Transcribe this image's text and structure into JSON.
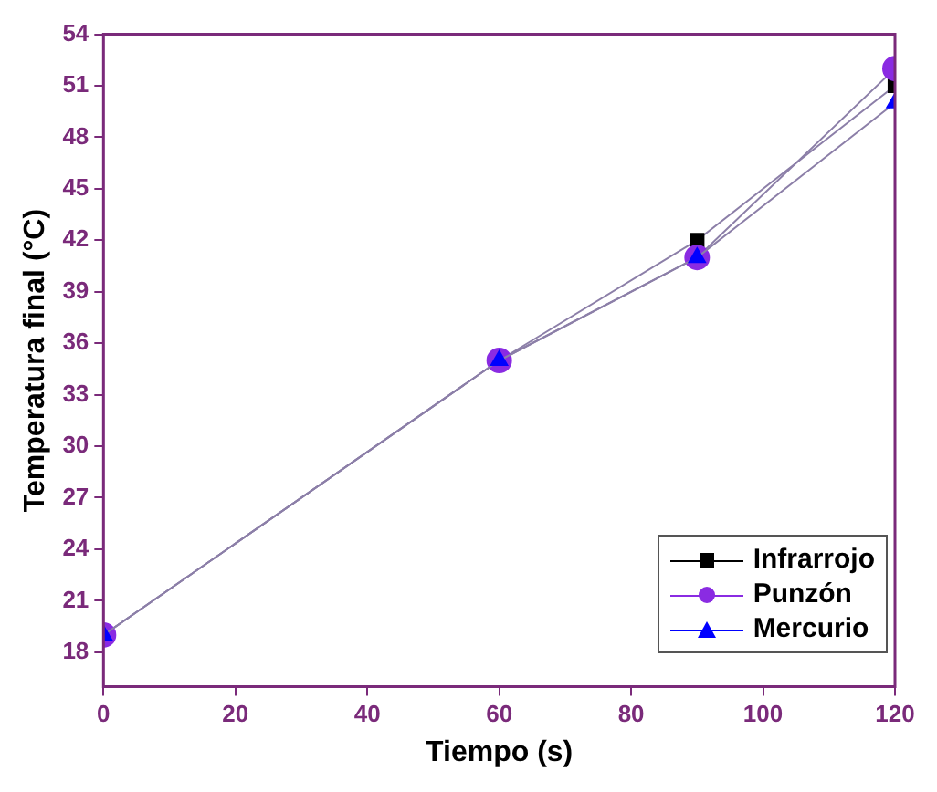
{
  "chart_data": {
    "type": "line",
    "xlabel": "Tiempo (s)",
    "ylabel": "Temperatura final (°C)",
    "x": [
      0,
      60,
      90,
      120
    ],
    "series": [
      {
        "name": "Infrarrojo",
        "color": "#000000",
        "marker": "square",
        "values": [
          19,
          35,
          42,
          51
        ]
      },
      {
        "name": "Punzón",
        "color": "#8a2be2",
        "marker": "circle",
        "values": [
          19,
          35,
          41,
          52
        ]
      },
      {
        "name": "Mercurio",
        "color": "#0000ff",
        "marker": "triangle",
        "values": [
          19,
          35,
          41,
          50
        ]
      }
    ],
    "xlim": [
      0,
      120
    ],
    "xticks": [
      0,
      20,
      40,
      60,
      80,
      100,
      120
    ],
    "ylim": [
      16,
      54
    ],
    "yticks": [
      18,
      21,
      24,
      27,
      30,
      33,
      36,
      39,
      42,
      45,
      48,
      51,
      54
    ],
    "grid": false,
    "legend": "bottom right",
    "line_style": "solid"
  }
}
